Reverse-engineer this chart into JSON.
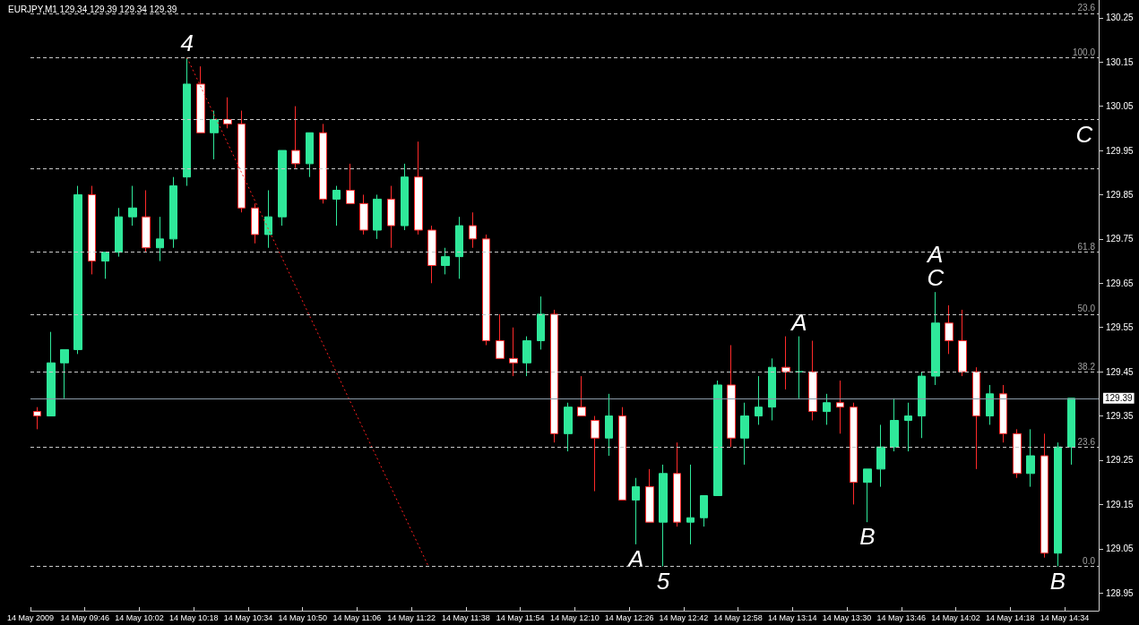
{
  "chart_data": {
    "type": "candlestick",
    "title": "EURJPY,M1 129.34 129.39 129.34 129.39",
    "x": [
      "2009-05-14T09:32",
      "2009-05-14T09:36",
      "2009-05-14T09:40",
      "2009-05-14T09:44",
      "2009-05-14T09:48",
      "2009-05-14T09:52",
      "2009-05-14T09:56",
      "2009-05-14T10:00",
      "2009-05-14T10:04",
      "2009-05-14T10:08",
      "2009-05-14T10:12",
      "2009-05-14T10:16",
      "2009-05-14T10:20",
      "2009-05-14T10:24",
      "2009-05-14T10:28",
      "2009-05-14T10:32",
      "2009-05-14T10:36",
      "2009-05-14T10:40",
      "2009-05-14T10:44",
      "2009-05-14T10:48",
      "2009-05-14T10:52",
      "2009-05-14T10:56",
      "2009-05-14T11:00",
      "2009-05-14T11:04",
      "2009-05-14T11:08",
      "2009-05-14T11:12",
      "2009-05-14T11:16",
      "2009-05-14T11:20",
      "2009-05-14T11:24",
      "2009-05-14T11:28",
      "2009-05-14T11:32",
      "2009-05-14T11:36",
      "2009-05-14T11:40",
      "2009-05-14T11:44",
      "2009-05-14T11:48",
      "2009-05-14T11:52",
      "2009-05-14T11:56",
      "2009-05-14T12:00",
      "2009-05-14T12:04",
      "2009-05-14T12:08",
      "2009-05-14T12:12",
      "2009-05-14T12:16",
      "2009-05-14T12:20",
      "2009-05-14T12:24",
      "2009-05-14T12:28",
      "2009-05-14T12:32",
      "2009-05-14T12:36",
      "2009-05-14T12:40",
      "2009-05-14T12:44",
      "2009-05-14T12:48",
      "2009-05-14T12:52",
      "2009-05-14T12:56",
      "2009-05-14T13:00",
      "2009-05-14T13:04",
      "2009-05-14T13:08",
      "2009-05-14T13:12",
      "2009-05-14T13:16",
      "2009-05-14T13:20",
      "2009-05-14T13:24",
      "2009-05-14T13:28",
      "2009-05-14T13:32",
      "2009-05-14T13:36",
      "2009-05-14T13:40",
      "2009-05-14T13:44",
      "2009-05-14T13:48",
      "2009-05-14T13:52",
      "2009-05-14T13:56",
      "2009-05-14T14:00",
      "2009-05-14T14:04",
      "2009-05-14T14:08",
      "2009-05-14T14:12",
      "2009-05-14T14:16",
      "2009-05-14T14:20",
      "2009-05-14T14:24",
      "2009-05-14T14:28",
      "2009-05-14T14:32",
      "2009-05-14T14:36"
    ],
    "ohlc": [
      [
        129.36,
        129.37,
        129.32,
        129.35
      ],
      [
        129.35,
        129.54,
        129.35,
        129.47
      ],
      [
        129.47,
        129.5,
        129.39,
        129.5
      ],
      [
        129.5,
        129.87,
        129.49,
        129.85
      ],
      [
        129.85,
        129.87,
        129.67,
        129.7
      ],
      [
        129.7,
        129.72,
        129.66,
        129.72
      ],
      [
        129.72,
        129.82,
        129.71,
        129.8
      ],
      [
        129.8,
        129.87,
        129.78,
        129.82
      ],
      [
        129.8,
        129.86,
        129.72,
        129.73
      ],
      [
        129.73,
        129.8,
        129.7,
        129.75
      ],
      [
        129.75,
        129.89,
        129.73,
        129.87
      ],
      [
        129.89,
        130.16,
        129.87,
        130.1
      ],
      [
        130.1,
        130.14,
        129.99,
        129.99
      ],
      [
        129.99,
        130.04,
        129.93,
        130.02
      ],
      [
        130.02,
        130.07,
        130.0,
        130.01
      ],
      [
        130.01,
        130.04,
        129.81,
        129.82
      ],
      [
        129.82,
        129.83,
        129.74,
        129.76
      ],
      [
        129.76,
        129.86,
        129.73,
        129.8
      ],
      [
        129.8,
        129.95,
        129.78,
        129.95
      ],
      [
        129.95,
        130.05,
        129.91,
        129.92
      ],
      [
        129.92,
        129.99,
        129.89,
        129.99
      ],
      [
        129.99,
        130.01,
        129.83,
        129.84
      ],
      [
        129.84,
        129.87,
        129.78,
        129.86
      ],
      [
        129.86,
        129.92,
        129.83,
        129.83
      ],
      [
        129.83,
        129.85,
        129.76,
        129.77
      ],
      [
        129.77,
        129.85,
        129.75,
        129.84
      ],
      [
        129.84,
        129.87,
        129.73,
        129.78
      ],
      [
        129.78,
        129.92,
        129.77,
        129.89
      ],
      [
        129.89,
        129.97,
        129.76,
        129.77
      ],
      [
        129.77,
        129.78,
        129.65,
        129.69
      ],
      [
        129.69,
        129.73,
        129.67,
        129.71
      ],
      [
        129.71,
        129.8,
        129.66,
        129.78
      ],
      [
        129.78,
        129.81,
        129.73,
        129.75
      ],
      [
        129.75,
        129.76,
        129.51,
        129.52
      ],
      [
        129.52,
        129.58,
        129.48,
        129.48
      ],
      [
        129.48,
        129.55,
        129.44,
        129.47
      ],
      [
        129.47,
        129.53,
        129.44,
        129.52
      ],
      [
        129.52,
        129.62,
        129.5,
        129.58
      ],
      [
        129.58,
        129.59,
        129.29,
        129.31
      ],
      [
        129.31,
        129.38,
        129.27,
        129.37
      ],
      [
        129.37,
        129.44,
        129.35,
        129.35
      ],
      [
        129.34,
        129.35,
        129.18,
        129.3
      ],
      [
        129.3,
        129.4,
        129.26,
        129.35
      ],
      [
        129.35,
        129.37,
        129.16,
        129.16
      ],
      [
        129.16,
        129.21,
        129.06,
        129.19
      ],
      [
        129.19,
        129.23,
        129.11,
        129.11
      ],
      [
        129.11,
        129.24,
        129.01,
        129.22
      ],
      [
        129.22,
        129.29,
        129.1,
        129.11
      ],
      [
        129.11,
        129.24,
        129.06,
        129.12
      ],
      [
        129.12,
        129.17,
        129.1,
        129.17
      ],
      [
        129.17,
        129.43,
        129.17,
        129.42
      ],
      [
        129.42,
        129.51,
        129.28,
        129.3
      ],
      [
        129.3,
        129.38,
        129.24,
        129.35
      ],
      [
        129.35,
        129.44,
        129.33,
        129.37
      ],
      [
        129.37,
        129.48,
        129.34,
        129.46
      ],
      [
        129.46,
        129.53,
        129.41,
        129.45
      ],
      [
        129.45,
        129.53,
        129.39,
        129.45
      ],
      [
        129.45,
        129.52,
        129.34,
        129.36
      ],
      [
        129.36,
        129.4,
        129.33,
        129.38
      ],
      [
        129.38,
        129.43,
        129.31,
        129.37
      ],
      [
        129.37,
        129.38,
        129.15,
        129.2
      ],
      [
        129.2,
        129.23,
        129.11,
        129.23
      ],
      [
        129.23,
        129.33,
        129.19,
        129.28
      ],
      [
        129.28,
        129.39,
        129.27,
        129.34
      ],
      [
        129.34,
        129.38,
        129.27,
        129.35
      ],
      [
        129.35,
        129.45,
        129.3,
        129.44
      ],
      [
        129.44,
        129.63,
        129.42,
        129.56
      ],
      [
        129.56,
        129.6,
        129.49,
        129.52
      ],
      [
        129.52,
        129.59,
        129.44,
        129.45
      ],
      [
        129.45,
        129.46,
        129.23,
        129.35
      ],
      [
        129.35,
        129.42,
        129.33,
        129.4
      ],
      [
        129.4,
        129.42,
        129.29,
        129.31
      ],
      [
        129.31,
        129.32,
        129.21,
        129.22
      ],
      [
        129.22,
        129.32,
        129.19,
        129.26
      ],
      [
        129.26,
        129.31,
        129.03,
        129.04
      ],
      [
        129.04,
        129.29,
        129.01,
        129.28
      ],
      [
        129.28,
        129.39,
        129.24,
        129.39
      ]
    ],
    "xlim": [
      "2009-05-14T09:30",
      "2009-05-14T14:44"
    ],
    "xticks": [
      {
        "value": "2009-05-14T09:30",
        "label": "14 May 2009"
      },
      {
        "value": "2009-05-14T09:46",
        "label": "14 May 09:46"
      },
      {
        "value": "2009-05-14T10:02",
        "label": "14 May 10:02"
      },
      {
        "value": "2009-05-14T10:18",
        "label": "14 May 10:18"
      },
      {
        "value": "2009-05-14T10:34",
        "label": "14 May 10:34"
      },
      {
        "value": "2009-05-14T10:50",
        "label": "14 May 10:50"
      },
      {
        "value": "2009-05-14T11:06",
        "label": "14 May 11:06"
      },
      {
        "value": "2009-05-14T11:22",
        "label": "14 May 11:22"
      },
      {
        "value": "2009-05-14T11:38",
        "label": "14 May 11:38"
      },
      {
        "value": "2009-05-14T11:54",
        "label": "14 May 11:54"
      },
      {
        "value": "2009-05-14T12:10",
        "label": "14 May 12:10"
      },
      {
        "value": "2009-05-14T12:26",
        "label": "14 May 12:26"
      },
      {
        "value": "2009-05-14T12:42",
        "label": "14 May 12:42"
      },
      {
        "value": "2009-05-14T12:58",
        "label": "14 May 12:58"
      },
      {
        "value": "2009-05-14T13:14",
        "label": "14 May 13:14"
      },
      {
        "value": "2009-05-14T13:30",
        "label": "14 May 13:30"
      },
      {
        "value": "2009-05-14T13:46",
        "label": "14 May 13:46"
      },
      {
        "value": "2009-05-14T14:02",
        "label": "14 May 14:02"
      },
      {
        "value": "2009-05-14T14:18",
        "label": "14 May 14:18"
      },
      {
        "value": "2009-05-14T14:34",
        "label": "14 May 14:34"
      }
    ],
    "ylim": [
      128.91,
      130.29
    ],
    "yticks": [
      128.95,
      129.05,
      129.15,
      129.25,
      129.35,
      129.45,
      129.55,
      129.65,
      129.75,
      129.85,
      129.95,
      130.05,
      130.15,
      130.25
    ],
    "series": [
      {
        "type": "line",
        "color": "#ff2020",
        "line_style": "dotted",
        "x": [
          "2009-05-14T10:16",
          "2009-05-14T11:27"
        ],
        "values": [
          130.16,
          129.01
        ]
      }
    ],
    "ref_lines": [
      {
        "axis": "y",
        "value": 130.26,
        "label": null,
        "color": "#c8c8c8",
        "line_style": "dashed"
      },
      {
        "axis": "y",
        "value": 130.16,
        "label": null,
        "color": "#c8c8c8",
        "line_style": "dashed"
      },
      {
        "axis": "y",
        "value": 130.02,
        "label": null,
        "color": "#c8c8c8",
        "line_style": "dashed"
      },
      {
        "axis": "y",
        "value": 129.91,
        "label": null,
        "color": "#c8c8c8",
        "line_style": "dashed"
      },
      {
        "axis": "y",
        "value": 129.72,
        "label": null,
        "color": "#c8c8c8",
        "line_style": "dashed"
      },
      {
        "axis": "y",
        "value": 129.58,
        "label": null,
        "color": "#c8c8c8",
        "line_style": "dashed"
      },
      {
        "axis": "y",
        "value": 129.45,
        "label": null,
        "color": "#c8c8c8",
        "line_style": "dashed"
      },
      {
        "axis": "y",
        "value": 129.28,
        "label": null,
        "color": "#c8c8c8",
        "line_style": "dashed"
      },
      {
        "axis": "y",
        "value": 129.01,
        "label": null,
        "color": "#c8c8c8",
        "line_style": "dashed"
      },
      {
        "axis": "y",
        "value": 129.39,
        "label": "129.39",
        "color": "#8a9aa8",
        "line_style": "solid"
      }
    ],
    "annotations": [
      {
        "text": "4",
        "x": "2009-05-14T10:16",
        "y": 130.16
      },
      {
        "text": "A",
        "x": "2009-05-14T12:28",
        "y": 129.06
      },
      {
        "text": "5",
        "x": "2009-05-14T12:36",
        "y": 129.01
      },
      {
        "text": "A",
        "x": "2009-05-14T13:16",
        "y": 129.53
      },
      {
        "text": "B",
        "x": "2009-05-14T13:36",
        "y": 129.11
      },
      {
        "text": "C",
        "x": "2009-05-14T13:56",
        "y": 129.63
      },
      {
        "text": "A",
        "x": "2009-05-14T13:56",
        "y": 129.63
      },
      "C",
      {
        "text": "B",
        "x": "2009-05-14T14:32",
        "y": 129.01
      },
      {
        "text": "23.6",
        "y": 130.26
      },
      {
        "text": "100.0",
        "y": 130.16
      },
      {
        "text": "61.8",
        "y": 129.72
      },
      {
        "text": "50.0",
        "y": 129.58
      },
      {
        "text": "38.2",
        "y": 129.45
      },
      {
        "text": "23.6",
        "y": 129.28
      },
      {
        "text": "0.0",
        "y": 129.01
      }
    ]
  }
}
